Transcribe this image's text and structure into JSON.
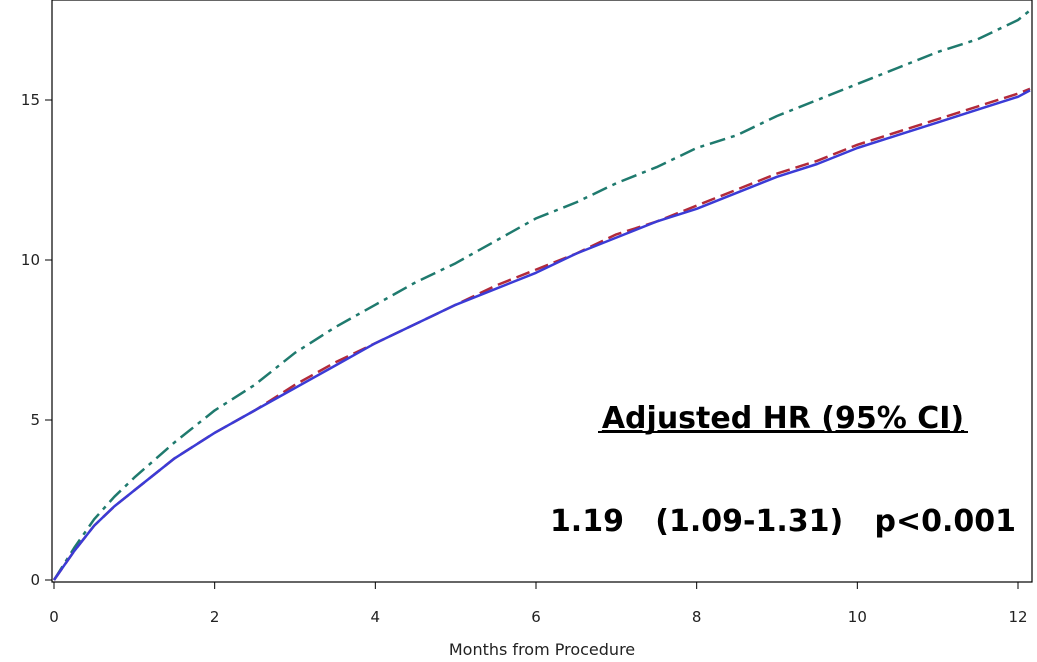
{
  "chart_data": {
    "type": "line",
    "title": "",
    "xlabel": "Months from Procedure",
    "ylabel": "",
    "xlim": [
      0,
      12.15
    ],
    "ylim": [
      0,
      18.1
    ],
    "x_ticks": [
      0,
      2,
      4,
      6,
      8,
      10,
      12
    ],
    "y_ticks": [
      0,
      5,
      10,
      15
    ],
    "grid": false,
    "legend": "none",
    "series": [
      {
        "color": "#1f7a6e",
        "style": "dashdot",
        "x": [
          0,
          0.25,
          0.5,
          0.75,
          1,
          1.5,
          2,
          2.5,
          3,
          3.5,
          4,
          4.5,
          5,
          5.5,
          6,
          6.5,
          7,
          7.5,
          8,
          8.5,
          9,
          9.5,
          10,
          10.5,
          11,
          11.5,
          12,
          12.15
        ],
        "y": [
          0,
          1.0,
          1.9,
          2.6,
          3.2,
          4.3,
          5.3,
          6.1,
          7.1,
          7.9,
          8.6,
          9.3,
          9.9,
          10.6,
          11.3,
          11.8,
          12.4,
          12.9,
          13.5,
          13.9,
          14.5,
          15.0,
          15.5,
          16.0,
          16.5,
          16.9,
          17.5,
          17.8
        ]
      },
      {
        "color": "#b22a3a",
        "style": "dashed",
        "x": [
          0,
          0.25,
          0.5,
          0.75,
          1,
          1.5,
          2,
          2.5,
          3,
          3.5,
          4,
          4.5,
          5,
          5.5,
          6,
          6.5,
          7,
          7.5,
          8,
          8.5,
          9,
          9.5,
          10,
          10.5,
          11,
          11.5,
          12,
          12.15
        ],
        "y": [
          0,
          0.9,
          1.7,
          2.3,
          2.8,
          3.8,
          4.6,
          5.3,
          6.1,
          6.8,
          7.4,
          8.0,
          8.6,
          9.2,
          9.7,
          10.2,
          10.8,
          11.2,
          11.7,
          12.2,
          12.7,
          13.1,
          13.6,
          14.0,
          14.4,
          14.8,
          15.2,
          15.35
        ]
      },
      {
        "color": "#3b3bd6",
        "style": "solid",
        "x": [
          0,
          0.25,
          0.5,
          0.75,
          1,
          1.5,
          2,
          2.5,
          3,
          3.5,
          4,
          4.5,
          5,
          5.5,
          6,
          6.5,
          7,
          7.5,
          8,
          8.5,
          9,
          9.5,
          10,
          10.5,
          11,
          11.5,
          12,
          12.15
        ],
        "y": [
          0,
          0.9,
          1.7,
          2.3,
          2.8,
          3.8,
          4.6,
          5.3,
          6.0,
          6.7,
          7.4,
          8.0,
          8.6,
          9.1,
          9.6,
          10.2,
          10.7,
          11.2,
          11.6,
          12.1,
          12.6,
          13.0,
          13.5,
          13.9,
          14.3,
          14.7,
          15.1,
          15.3
        ]
      }
    ],
    "annotations": {
      "heading": "Adjusted HR (95% CI)",
      "result": "1.19   (1.09-1.31)   p<0.001"
    }
  }
}
